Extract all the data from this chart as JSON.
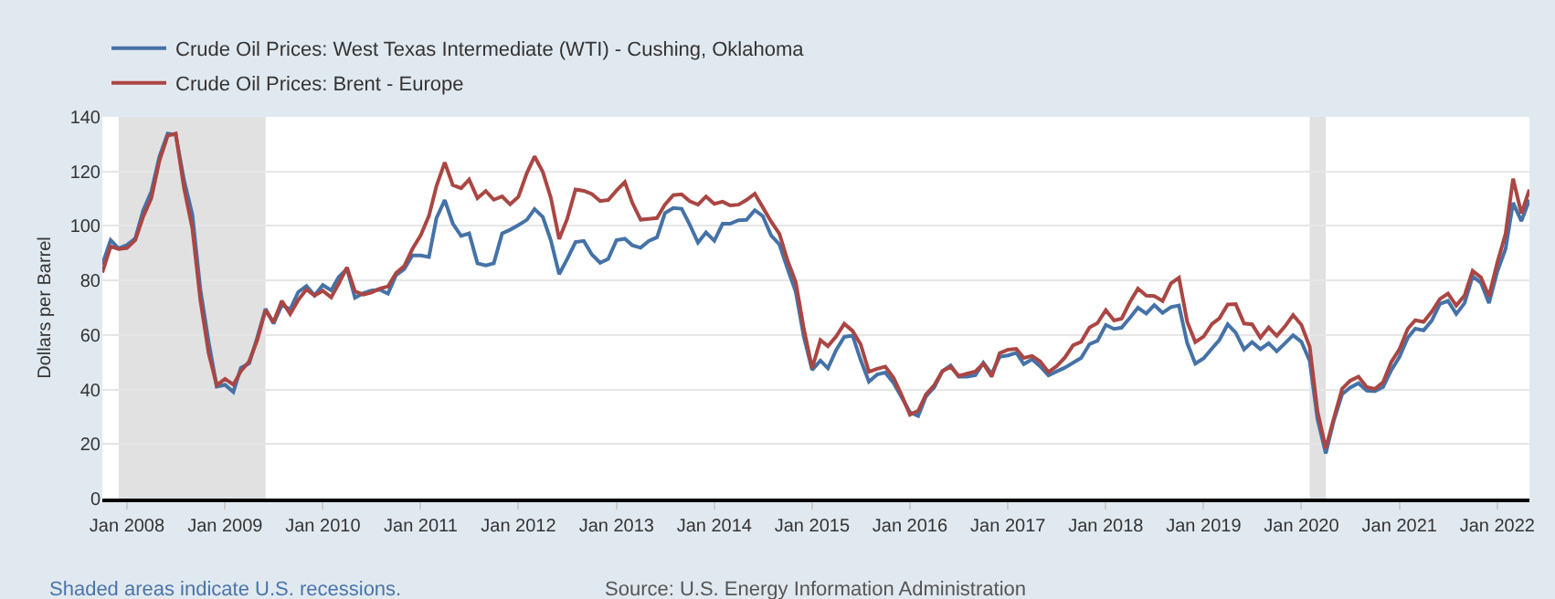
{
  "chart_data": {
    "type": "line",
    "ylabel": "Dollars per Barrel",
    "x": [
      "2007-10",
      "2007-11",
      "2007-12",
      "2008-01",
      "2008-02",
      "2008-03",
      "2008-04",
      "2008-05",
      "2008-06",
      "2008-07",
      "2008-08",
      "2008-09",
      "2008-10",
      "2008-11",
      "2008-12",
      "2009-01",
      "2009-02",
      "2009-03",
      "2009-04",
      "2009-05",
      "2009-06",
      "2009-07",
      "2009-08",
      "2009-09",
      "2009-10",
      "2009-11",
      "2009-12",
      "2010-01",
      "2010-02",
      "2010-03",
      "2010-04",
      "2010-05",
      "2010-06",
      "2010-07",
      "2010-08",
      "2010-09",
      "2010-10",
      "2010-11",
      "2010-12",
      "2011-01",
      "2011-02",
      "2011-03",
      "2011-04",
      "2011-05",
      "2011-06",
      "2011-07",
      "2011-08",
      "2011-09",
      "2011-10",
      "2011-11",
      "2011-12",
      "2012-01",
      "2012-02",
      "2012-03",
      "2012-04",
      "2012-05",
      "2012-06",
      "2012-07",
      "2012-08",
      "2012-09",
      "2012-10",
      "2012-11",
      "2012-12",
      "2013-01",
      "2013-02",
      "2013-03",
      "2013-04",
      "2013-05",
      "2013-06",
      "2013-07",
      "2013-08",
      "2013-09",
      "2013-10",
      "2013-11",
      "2013-12",
      "2014-01",
      "2014-02",
      "2014-03",
      "2014-04",
      "2014-05",
      "2014-06",
      "2014-07",
      "2014-08",
      "2014-09",
      "2014-10",
      "2014-11",
      "2014-12",
      "2015-01",
      "2015-02",
      "2015-03",
      "2015-04",
      "2015-05",
      "2015-06",
      "2015-07",
      "2015-08",
      "2015-09",
      "2015-10",
      "2015-11",
      "2015-12",
      "2016-01",
      "2016-02",
      "2016-03",
      "2016-04",
      "2016-05",
      "2016-06",
      "2016-07",
      "2016-08",
      "2016-09",
      "2016-10",
      "2016-11",
      "2016-12",
      "2017-01",
      "2017-02",
      "2017-03",
      "2017-04",
      "2017-05",
      "2017-06",
      "2017-07",
      "2017-08",
      "2017-09",
      "2017-10",
      "2017-11",
      "2017-12",
      "2018-01",
      "2018-02",
      "2018-03",
      "2018-04",
      "2018-05",
      "2018-06",
      "2018-07",
      "2018-08",
      "2018-09",
      "2018-10",
      "2018-11",
      "2018-12",
      "2019-01",
      "2019-02",
      "2019-03",
      "2019-04",
      "2019-05",
      "2019-06",
      "2019-07",
      "2019-08",
      "2019-09",
      "2019-10",
      "2019-11",
      "2019-12",
      "2020-01",
      "2020-02",
      "2020-03",
      "2020-04",
      "2020-05",
      "2020-06",
      "2020-07",
      "2020-08",
      "2020-09",
      "2020-10",
      "2020-11",
      "2020-12",
      "2021-01",
      "2021-02",
      "2021-03",
      "2021-04",
      "2021-05",
      "2021-06",
      "2021-07",
      "2021-08",
      "2021-09",
      "2021-10",
      "2021-11",
      "2021-12",
      "2022-01",
      "2022-02",
      "2022-03",
      "2022-04",
      "2022-05"
    ],
    "series": [
      {
        "name": "Crude Oil Prices: West Texas Intermediate (WTI) - Cushing, Oklahoma",
        "color": "#4572a7",
        "values": [
          85.8,
          94.8,
          91.7,
          93.0,
          95.4,
          105.5,
          112.6,
          125.4,
          133.9,
          133.4,
          116.7,
          104.1,
          76.6,
          57.3,
          41.1,
          41.7,
          39.1,
          47.9,
          49.6,
          59.0,
          69.6,
          64.2,
          71.0,
          69.4,
          75.7,
          78.0,
          74.5,
          78.3,
          76.4,
          81.2,
          84.3,
          73.7,
          75.3,
          76.3,
          76.6,
          75.2,
          81.9,
          84.2,
          89.2,
          89.2,
          88.6,
          102.9,
          109.5,
          100.9,
          96.3,
          97.3,
          86.3,
          85.5,
          86.3,
          97.2,
          98.6,
          100.3,
          102.2,
          106.2,
          103.3,
          94.7,
          82.3,
          87.9,
          94.1,
          94.5,
          89.5,
          86.5,
          87.9,
          94.8,
          95.3,
          92.9,
          92.0,
          94.5,
          95.8,
          104.7,
          106.6,
          106.3,
          100.5,
          93.9,
          97.6,
          94.6,
          100.8,
          100.8,
          102.1,
          102.2,
          105.8,
          103.6,
          96.5,
          93.2,
          84.4,
          75.8,
          59.3,
          47.2,
          50.6,
          47.8,
          54.5,
          59.3,
          59.8,
          50.9,
          42.9,
          45.5,
          46.2,
          42.4,
          37.2,
          31.7,
          30.3,
          37.5,
          40.8,
          46.7,
          48.8,
          44.7,
          44.7,
          45.2,
          49.8,
          45.7,
          52.0,
          52.5,
          53.5,
          49.3,
          51.1,
          48.5,
          45.2,
          46.6,
          48.0,
          49.8,
          51.6,
          56.6,
          57.9,
          63.7,
          62.2,
          62.7,
          66.3,
          70.0,
          67.9,
          71.0,
          68.1,
          70.2,
          70.8,
          57.0,
          49.5,
          51.4,
          55.0,
          58.2,
          63.9,
          60.8,
          54.7,
          57.4,
          54.8,
          57.0,
          54.0,
          57.0,
          59.9,
          57.5,
          50.5,
          29.2,
          16.6,
          28.6,
          38.3,
          40.7,
          42.3,
          39.6,
          39.4,
          40.9,
          47.0,
          52.0,
          59.0,
          62.3,
          61.7,
          65.2,
          71.4,
          72.5,
          67.7,
          71.7,
          81.5,
          79.2,
          71.7,
          83.2,
          91.6,
          108.5,
          101.8,
          109.6
        ]
      },
      {
        "name": "Crude Oil Prices: Brent - Europe",
        "color": "#aa4643",
        "values": [
          82.9,
          92.5,
          91.5,
          91.9,
          94.8,
          103.3,
          110.2,
          123.9,
          133.1,
          133.9,
          113.9,
          99.1,
          72.8,
          53.2,
          41.6,
          43.9,
          41.8,
          46.7,
          50.3,
          58.1,
          69.1,
          64.7,
          72.5,
          67.7,
          72.8,
          76.7,
          74.5,
          76.2,
          73.8,
          78.8,
          84.8,
          76.0,
          74.8,
          75.6,
          77.0,
          77.8,
          82.7,
          85.3,
          91.5,
          96.5,
          103.7,
          114.6,
          123.3,
          115.0,
          113.8,
          117.0,
          110.2,
          112.8,
          109.6,
          110.8,
          107.9,
          110.7,
          119.3,
          125.5,
          119.8,
          110.3,
          95.2,
          102.6,
          113.4,
          112.9,
          111.7,
          109.1,
          109.5,
          113.0,
          116.1,
          108.5,
          102.3,
          102.6,
          102.9,
          107.9,
          111.3,
          111.6,
          109.1,
          107.8,
          110.8,
          108.1,
          108.9,
          107.5,
          107.8,
          109.5,
          111.8,
          106.8,
          101.6,
          97.1,
          87.4,
          79.4,
          62.3,
          47.8,
          58.1,
          55.9,
          59.5,
          64.1,
          61.5,
          56.6,
          46.5,
          47.6,
          48.4,
          44.3,
          38.0,
          30.7,
          32.2,
          38.2,
          41.6,
          46.7,
          48.3,
          45.0,
          45.8,
          46.6,
          49.5,
          44.7,
          53.3,
          54.6,
          54.9,
          51.6,
          52.3,
          50.3,
          46.4,
          48.5,
          51.7,
          56.2,
          57.5,
          62.7,
          64.4,
          69.1,
          65.3,
          66.0,
          72.1,
          77.0,
          74.4,
          74.3,
          72.5,
          78.9,
          81.0,
          64.8,
          57.4,
          59.4,
          64.0,
          66.1,
          71.2,
          71.3,
          64.2,
          63.9,
          59.0,
          62.8,
          59.7,
          63.2,
          67.3,
          63.7,
          55.7,
          32.0,
          18.4,
          29.4,
          40.3,
          43.2,
          44.7,
          40.9,
          40.2,
          42.7,
          50.0,
          54.8,
          62.3,
          65.4,
          64.8,
          68.5,
          73.2,
          75.2,
          70.8,
          74.5,
          83.5,
          81.1,
          74.2,
          86.5,
          97.1,
          117.3,
          104.6,
          113.3
        ]
      }
    ],
    "xlim": [
      "2007-10",
      "2022-05"
    ],
    "xticks": [
      {
        "value": "2008-01",
        "label": "Jan 2008"
      },
      {
        "value": "2009-01",
        "label": "Jan 2009"
      },
      {
        "value": "2010-01",
        "label": "Jan 2010"
      },
      {
        "value": "2011-01",
        "label": "Jan 2011"
      },
      {
        "value": "2012-01",
        "label": "Jan 2012"
      },
      {
        "value": "2013-01",
        "label": "Jan 2013"
      },
      {
        "value": "2014-01",
        "label": "Jan 2014"
      },
      {
        "value": "2015-01",
        "label": "Jan 2015"
      },
      {
        "value": "2016-01",
        "label": "Jan 2016"
      },
      {
        "value": "2017-01",
        "label": "Jan 2017"
      },
      {
        "value": "2018-01",
        "label": "Jan 2018"
      },
      {
        "value": "2019-01",
        "label": "Jan 2019"
      },
      {
        "value": "2020-01",
        "label": "Jan 2020"
      },
      {
        "value": "2021-01",
        "label": "Jan 2021"
      },
      {
        "value": "2022-01",
        "label": "Jan 2022"
      }
    ],
    "ylim": [
      0,
      140
    ],
    "yticks": [
      0,
      20,
      40,
      60,
      80,
      100,
      120,
      140
    ],
    "bands": [
      {
        "axis": "x",
        "from": "2007-12",
        "to": "2009-06",
        "color": "#e1e1e1"
      },
      {
        "axis": "x",
        "from": "2020-02",
        "to": "2020-04",
        "color": "#e1e1e1"
      }
    ],
    "grid": "y",
    "legend": "top left",
    "marker": "none",
    "line_style": "solid",
    "annotations": [
      "Shaded areas indicate U.S. recessions.",
      "Source: U.S. Energy Information Administration"
    ]
  }
}
